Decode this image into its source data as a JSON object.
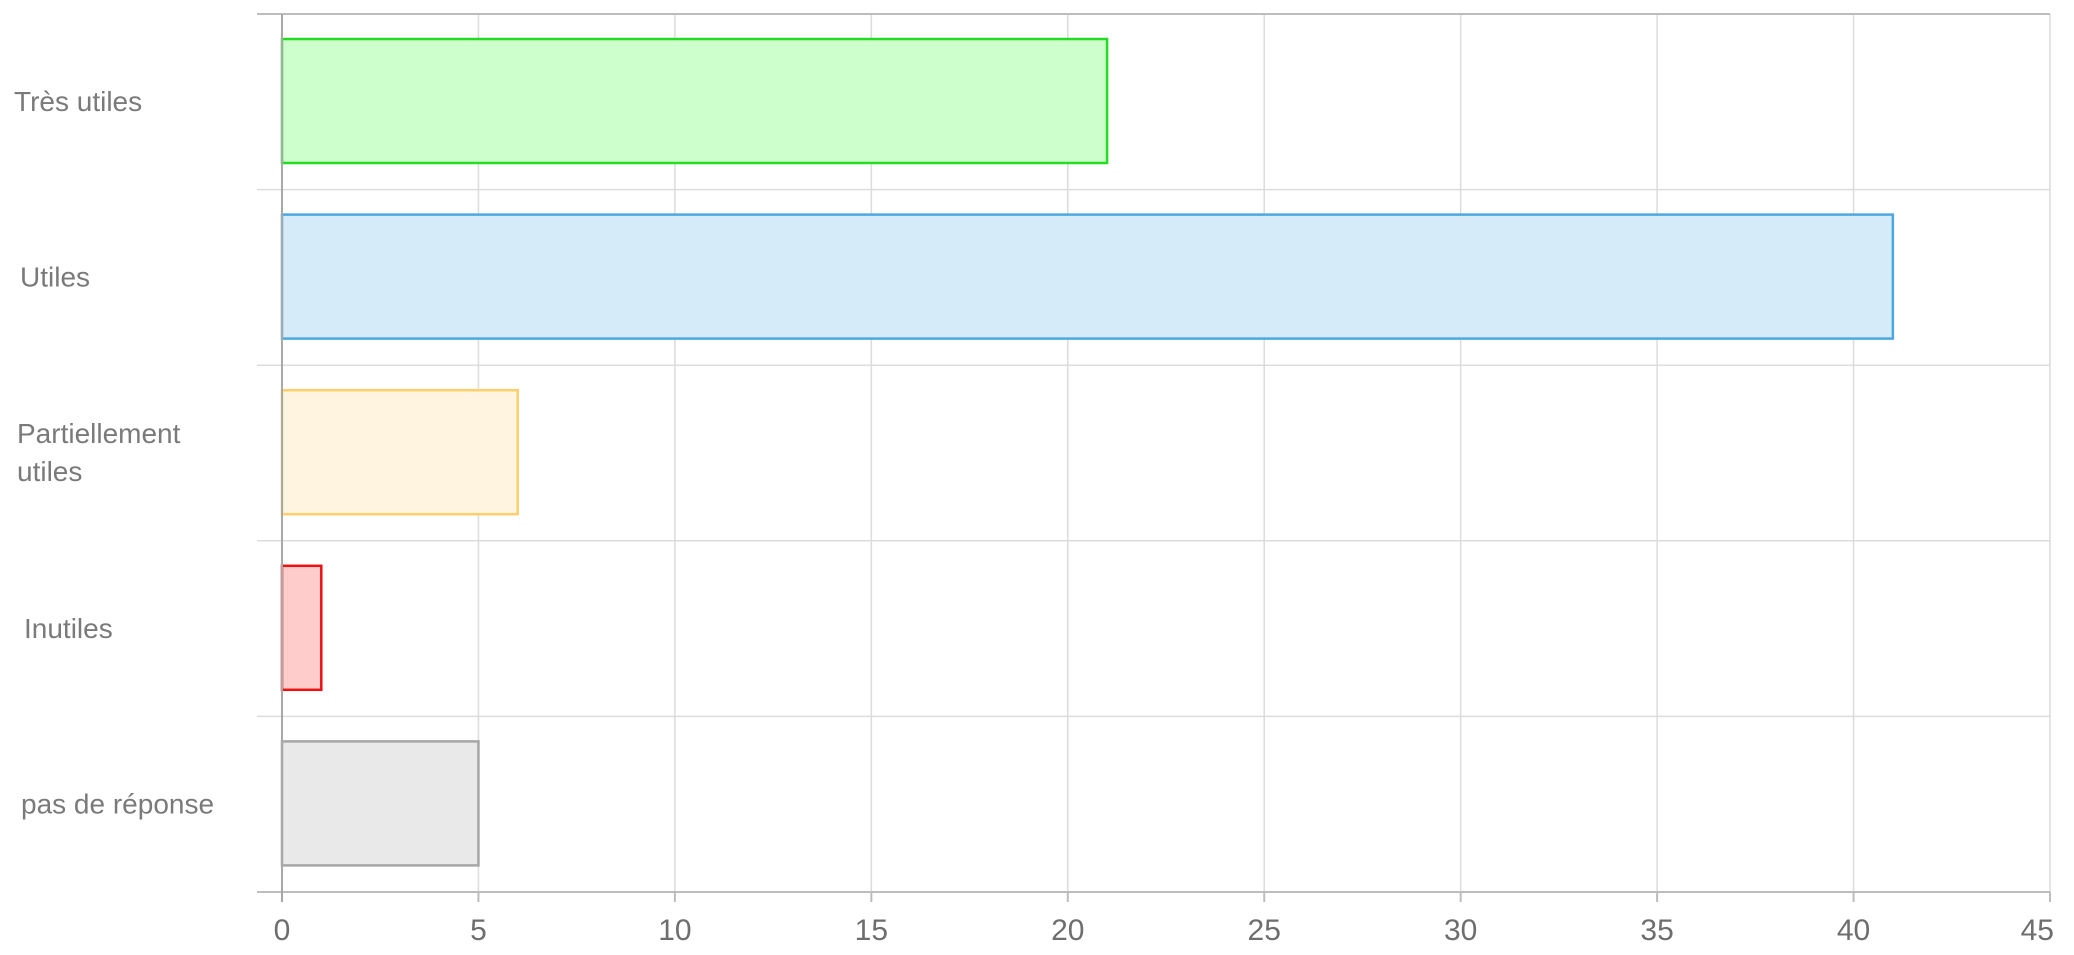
{
  "chart_data": {
    "type": "bar",
    "orientation": "horizontal",
    "title": "",
    "xlabel": "",
    "ylabel": "",
    "categories": [
      [
        "Très utiles"
      ],
      [
        "Utiles"
      ],
      [
        "Partiellement",
        "utiles"
      ],
      [
        "Inutiles"
      ],
      [
        "pas de réponse"
      ]
    ],
    "values": [
      21,
      41,
      6,
      1,
      5
    ],
    "xlim": [
      0,
      45
    ],
    "xticks": [
      0,
      5,
      10,
      15,
      20,
      25,
      30,
      35,
      40,
      45
    ],
    "xtick_labels": [
      "0",
      "5",
      "10",
      "15",
      "20",
      "25",
      "30",
      "35",
      "40",
      "45"
    ],
    "grid": true,
    "legend": "none",
    "bar_fill_colors": [
      "#ccffcc",
      "#d6ebfa",
      "#fff4e0",
      "#ffcccc",
      "#e9e9e9"
    ],
    "bar_stroke_colors": [
      "#22dd22",
      "#4ea7e0",
      "#ffcf6b",
      "#ee1111",
      "#a6a6a6"
    ],
    "grid_color": "#dcdcdc",
    "axis_color": "#bdbdbd"
  }
}
